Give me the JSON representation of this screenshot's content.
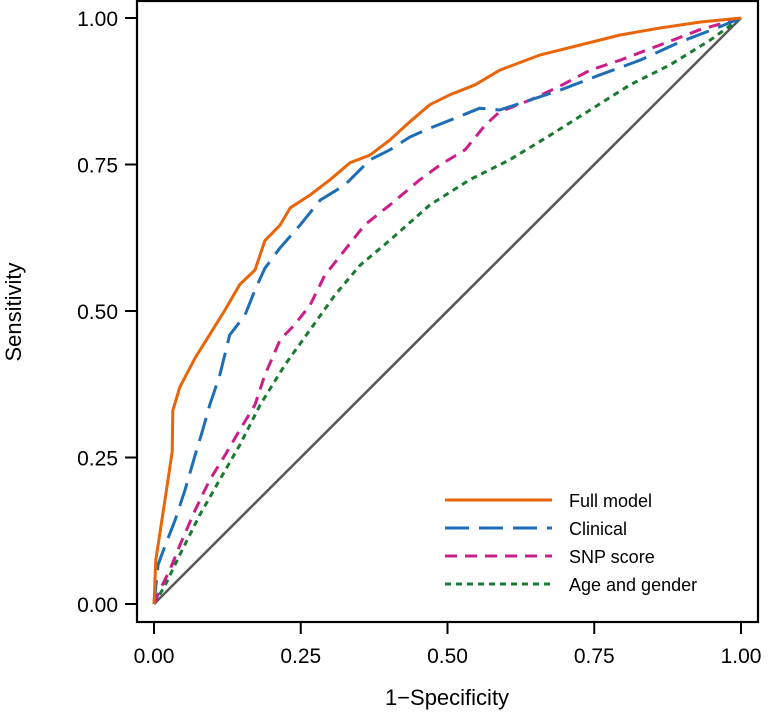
{
  "chart_data": {
    "type": "line",
    "title": "",
    "xlabel": "1−Specificity",
    "ylabel": "Sensitivity",
    "xlim": [
      0,
      1
    ],
    "ylim": [
      0,
      1
    ],
    "x_ticks": [
      0,
      0.25,
      0.5,
      0.75,
      1
    ],
    "y_ticks": [
      0,
      0.25,
      0.5,
      0.75,
      1
    ],
    "x_tick_labels": [
      "0.00",
      "0.25",
      "0.50",
      "0.75",
      "1.00"
    ],
    "y_tick_labels": [
      "0.00",
      "0.25",
      "0.50",
      "0.75",
      "1.00"
    ],
    "grid": false,
    "legend_position": "bottom-right",
    "reference_line": {
      "name": "chance",
      "x": [
        0,
        1
      ],
      "y": [
        0,
        1
      ],
      "color": "#595959",
      "style": "solid"
    },
    "series": [
      {
        "name": "Full model",
        "color": "#E8650A",
        "style": "solid",
        "x": [
          0,
          0.003,
          0.019,
          0.031,
          0.032,
          0.044,
          0.07,
          0.095,
          0.12,
          0.146,
          0.172,
          0.189,
          0.215,
          0.232,
          0.266,
          0.3,
          0.334,
          0.368,
          0.402,
          0.436,
          0.47,
          0.504,
          0.547,
          0.589,
          0.658,
          0.726,
          0.794,
          0.862,
          0.93,
          1
        ],
        "y": [
          0,
          0.075,
          0.18,
          0.26,
          0.33,
          0.37,
          0.42,
          0.46,
          0.5,
          0.545,
          0.57,
          0.62,
          0.647,
          0.676,
          0.698,
          0.724,
          0.753,
          0.766,
          0.792,
          0.823,
          0.852,
          0.869,
          0.886,
          0.911,
          0.937,
          0.954,
          0.971,
          0.983,
          0.993,
          1
        ]
      },
      {
        "name": "Clinical",
        "color": "#1F6DB5",
        "style": "longdash",
        "x": [
          0,
          0.007,
          0.019,
          0.036,
          0.053,
          0.07,
          0.083,
          0.095,
          0.112,
          0.129,
          0.155,
          0.172,
          0.189,
          0.215,
          0.249,
          0.283,
          0.325,
          0.368,
          0.402,
          0.436,
          0.47,
          0.513,
          0.555,
          0.589,
          0.641,
          0.692,
          0.76,
          0.828,
          0.896,
          0.964,
          1
        ],
        "y": [
          0,
          0.067,
          0.1,
          0.143,
          0.195,
          0.254,
          0.297,
          0.34,
          0.39,
          0.459,
          0.493,
          0.536,
          0.573,
          0.608,
          0.647,
          0.689,
          0.715,
          0.758,
          0.775,
          0.797,
          0.812,
          0.829,
          0.846,
          0.843,
          0.86,
          0.877,
          0.903,
          0.928,
          0.959,
          0.985,
          1
        ]
      },
      {
        "name": "SNP score",
        "color": "#CC1E8A",
        "style": "dashed",
        "x": [
          0,
          0.01,
          0.027,
          0.044,
          0.07,
          0.095,
          0.121,
          0.146,
          0.172,
          0.189,
          0.215,
          0.239,
          0.266,
          0.291,
          0.325,
          0.359,
          0.402,
          0.453,
          0.487,
          0.53,
          0.564,
          0.589,
          0.641,
          0.692,
          0.743,
          0.794,
          0.862,
          0.93,
          1
        ],
        "y": [
          0,
          0.024,
          0.058,
          0.1,
          0.16,
          0.212,
          0.254,
          0.297,
          0.34,
          0.391,
          0.451,
          0.476,
          0.51,
          0.561,
          0.604,
          0.647,
          0.681,
          0.724,
          0.749,
          0.775,
          0.817,
          0.84,
          0.86,
          0.884,
          0.911,
          0.928,
          0.954,
          0.98,
          1
        ]
      },
      {
        "name": "Age and gender",
        "color": "#1A7A32",
        "style": "dotted",
        "x": [
          0,
          0.019,
          0.044,
          0.078,
          0.112,
          0.146,
          0.181,
          0.223,
          0.266,
          0.308,
          0.351,
          0.402,
          0.47,
          0.538,
          0.606,
          0.675,
          0.743,
          0.811,
          0.879,
          0.947,
          1
        ],
        "y": [
          0,
          0.032,
          0.084,
          0.152,
          0.212,
          0.271,
          0.34,
          0.408,
          0.468,
          0.527,
          0.578,
          0.621,
          0.681,
          0.724,
          0.758,
          0.8,
          0.843,
          0.886,
          0.92,
          0.962,
          1
        ]
      }
    ]
  }
}
